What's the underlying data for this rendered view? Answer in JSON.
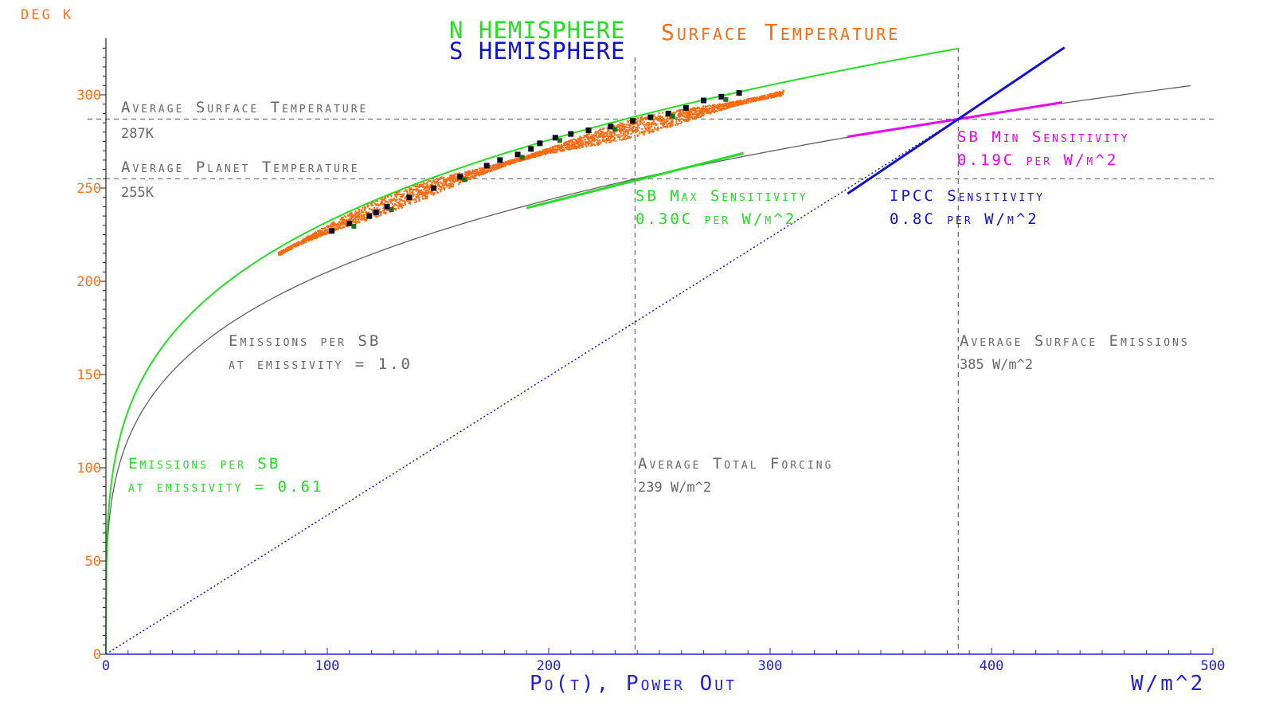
{
  "chart_data": {
    "type": "scatter",
    "title_n": "N HEMISPHERE",
    "title_s": "S HEMISPHERE",
    "title_main": "Surface Temperature",
    "ylabel": "DEG K",
    "xlabel": "Po(t), Power Out",
    "xunit": "W/m^2",
    "xlim": [
      0,
      500
    ],
    "ylim": [
      0,
      330
    ],
    "xticks": [
      "0",
      "100",
      "200",
      "300",
      "400",
      "500"
    ],
    "yticks": [
      "0",
      "50",
      "100",
      "150",
      "200",
      "250",
      "300"
    ],
    "reference_lines": {
      "avg_surface_temp": {
        "value": 287,
        "label": "Average Surface Temperature",
        "value_label": "287K"
      },
      "avg_planet_temp": {
        "value": 255,
        "label": "Average Planet Temperature",
        "value_label": "255K"
      },
      "avg_total_forcing": {
        "value": 239,
        "label": "Average Total Forcing",
        "value_label": "239 W/m^2"
      },
      "avg_surface_emissions": {
        "value": 385,
        "label": "Average Surface Emissions",
        "value_label": "385 W/m^2"
      }
    },
    "curves": {
      "sb_emissivity_061": {
        "emissivity": 0.61,
        "label1": "Emissions per SB",
        "label2": "at emissivity = 0.61",
        "color": "#22e022"
      },
      "sb_emissivity_10": {
        "emissivity": 1.0,
        "label1": "Emissions per SB",
        "label2": "at emissivity = 1.0",
        "color": "#555555"
      }
    },
    "sensitivities": {
      "sb_max": {
        "label": "SB Max Sensitivity",
        "value_label": "0.30C per W/m^2",
        "slope": 0.3,
        "x": [
          190,
          288
        ],
        "color": "#22e022"
      },
      "sb_min": {
        "label": "SB Min Sensitivity",
        "value_label": "0.19C per W/m^2",
        "slope": 0.19,
        "x": [
          335,
          432
        ],
        "color": "#ee00ee"
      },
      "ipcc": {
        "label": "IPCC Sensitivity",
        "value_label": "0.8C per W/m^2",
        "slope": 0.8,
        "x": [
          335,
          433
        ],
        "color": "#1010d0"
      }
    },
    "scatter_points": [
      [
        102,
        227
      ],
      [
        110,
        231
      ],
      [
        119,
        235
      ],
      [
        122,
        237
      ],
      [
        127,
        240
      ],
      [
        137,
        245
      ],
      [
        148,
        250
      ],
      [
        160,
        256
      ],
      [
        172,
        262
      ],
      [
        178,
        265
      ],
      [
        186,
        268
      ],
      [
        192,
        271
      ],
      [
        196,
        274
      ],
      [
        203,
        277
      ],
      [
        210,
        279
      ],
      [
        218,
        281
      ],
      [
        228,
        283
      ],
      [
        238,
        286
      ],
      [
        246,
        288
      ],
      [
        254,
        290
      ],
      [
        262,
        293
      ],
      [
        270,
        297
      ],
      [
        278,
        299
      ],
      [
        286,
        301
      ]
    ],
    "colors": {
      "temperature_cloud": "#ff6a10",
      "axis_labels": "#ff7020",
      "x_axis": "#2020e0",
      "n_hemisphere": "#22e022",
      "s_hemisphere": "#1010d0",
      "reference": "#666666"
    }
  }
}
